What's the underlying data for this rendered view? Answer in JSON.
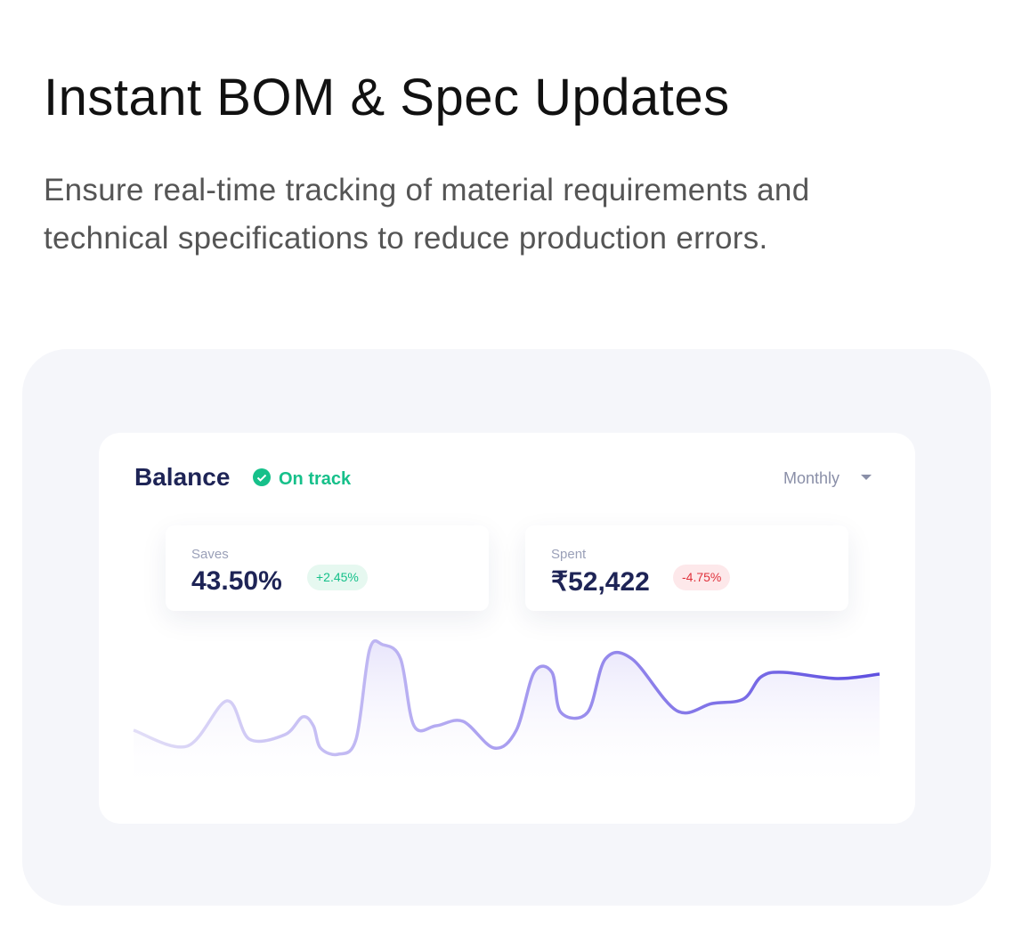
{
  "header": {
    "title": "Instant BOM & Spec Updates",
    "description": [
      "Ensure real-time tracking of material requirements and",
      "technical specifications to reduce production errors."
    ]
  },
  "card": {
    "title": "Balance",
    "status": "On track",
    "period": "Monthly",
    "stats": [
      {
        "label": "Saves",
        "value": "43.50%",
        "change": "+2.45%"
      },
      {
        "label": "Spent",
        "value": "₹52,422",
        "change": "-4.75%"
      }
    ]
  }
}
